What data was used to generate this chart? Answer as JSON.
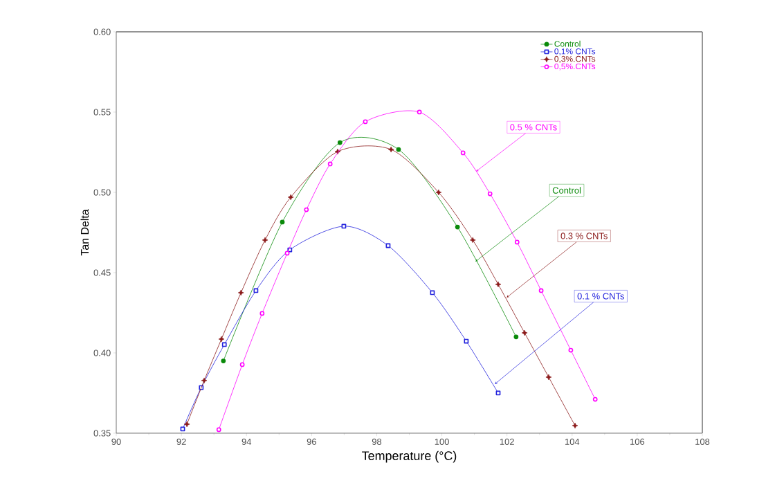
{
  "chart_data": {
    "type": "line",
    "xlabel": "Temperature  (°C)",
    "ylabel": "Tan Delta",
    "xlim": [
      90,
      108
    ],
    "ylim": [
      0.35,
      0.6
    ],
    "xticks": [
      90,
      92,
      94,
      96,
      98,
      100,
      102,
      104,
      106,
      108
    ],
    "yticks": [
      0.35,
      {
        "value": 0.4,
        "label": "0.40"
      },
      0.45,
      {
        "value": 0.5,
        "label": "0.50"
      },
      0.55,
      {
        "value": 0.6,
        "label": "0.60"
      }
    ],
    "legend": "top right",
    "grid": false,
    "series": [
      {
        "name": "Control",
        "color": "#0a8a0a",
        "marker": "circle",
        "x": [
          93.29,
          95.1,
          96.87,
          98.67,
          100.48,
          102.28
        ],
        "values": [
          0.395,
          0.4815,
          0.531,
          0.5267,
          0.4784,
          0.41
        ]
      },
      {
        "name": "0,1% CNTs",
        "color": "#2222dd",
        "marker": "square",
        "x": [
          92.04,
          92.61,
          93.32,
          94.29,
          95.33,
          96.99,
          98.35,
          99.71,
          100.75,
          101.73
        ],
        "values": [
          0.3526,
          0.3784,
          0.4052,
          0.4388,
          0.4642,
          0.4789,
          0.4668,
          0.4375,
          0.4073,
          0.375
        ]
      },
      {
        "name": "0,3%.CNTs",
        "color": "#8b1a1a",
        "marker": "star",
        "x": [
          92.17,
          92.7,
          93.23,
          93.83,
          94.57,
          95.36,
          96.8,
          98.44,
          99.9,
          100.95,
          101.73,
          102.54,
          103.28,
          104.09
        ],
        "values": [
          0.3556,
          0.3828,
          0.4086,
          0.4375,
          0.4703,
          0.497,
          0.5254,
          0.5267,
          0.5,
          0.4703,
          0.4427,
          0.4125,
          0.3849,
          0.3547
        ]
      },
      {
        "name": "0,5%.CNTs",
        "color": "#ff00ff",
        "marker": "circle",
        "x": [
          93.15,
          93.87,
          94.48,
          95.25,
          95.84,
          96.57,
          97.65,
          99.31,
          100.65,
          101.48,
          102.31,
          103.05,
          103.96,
          104.71
        ],
        "values": [
          0.3522,
          0.3927,
          0.4246,
          0.4621,
          0.4892,
          0.5177,
          0.544,
          0.55,
          0.5246,
          0.4991,
          0.469,
          0.4388,
          0.4017,
          0.3711
        ]
      }
    ],
    "annotations": [
      {
        "text": "Control",
        "x": 101.03,
        "y": 0.4569
      },
      {
        "text": "0.1 % CNTs",
        "x": 101.63,
        "y": 0.3806
      },
      {
        "text": "0.3 % CNTs",
        "x": 101.99,
        "y": 0.4345
      },
      {
        "text": "0.5 % CNTs",
        "x": 101.05,
        "y": 0.513
      }
    ]
  }
}
